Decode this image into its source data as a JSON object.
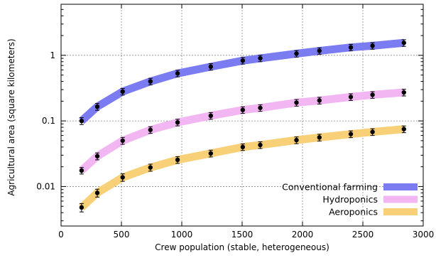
{
  "chart_data": {
    "type": "line",
    "title": "",
    "xlabel": "Crew population (stable, heterogeneous)",
    "ylabel": "Agricultural area (square kilometers)",
    "xlim": [
      0,
      3000
    ],
    "ylim": [
      0.0025,
      6
    ],
    "yscale": "log",
    "xticks": [
      0,
      500,
      1000,
      1500,
      2000,
      2500,
      3000
    ],
    "xtick_labels": [
      "0",
      "500",
      "1000",
      "1500",
      "2000",
      "2500",
      "3000"
    ],
    "yticks": [
      0.01,
      0.1,
      1
    ],
    "ytick_labels": [
      "0.01",
      "0.1",
      "1"
    ],
    "grid": true,
    "legend_position": "bottom-right",
    "x": [
      170,
      300,
      510,
      740,
      965,
      1240,
      1505,
      1650,
      1950,
      2140,
      2400,
      2580,
      2840
    ],
    "series": [
      {
        "name": "Conventional farming",
        "color": "#7b7bf2",
        "values": [
          0.1,
          0.165,
          0.28,
          0.4,
          0.53,
          0.67,
          0.83,
          0.9,
          1.06,
          1.17,
          1.32,
          1.4,
          1.55
        ],
        "error": [
          0.012,
          0.02,
          0.032,
          0.045,
          0.06,
          0.075,
          0.095,
          0.1,
          0.12,
          0.13,
          0.15,
          0.16,
          0.18
        ]
      },
      {
        "name": "Hydroponics",
        "color": "#f2b6f2",
        "values": [
          0.0175,
          0.029,
          0.05,
          0.073,
          0.095,
          0.12,
          0.147,
          0.158,
          0.19,
          0.205,
          0.232,
          0.25,
          0.272
        ],
        "error": [
          0.002,
          0.0035,
          0.006,
          0.0085,
          0.011,
          0.014,
          0.017,
          0.018,
          0.022,
          0.024,
          0.027,
          0.029,
          0.032
        ]
      },
      {
        "name": "Aeroponics",
        "color": "#f8d078",
        "values": [
          0.0048,
          0.008,
          0.0138,
          0.0195,
          0.0255,
          0.032,
          0.04,
          0.043,
          0.051,
          0.056,
          0.063,
          0.068,
          0.075
        ],
        "error": [
          0.0007,
          0.0011,
          0.0018,
          0.0024,
          0.003,
          0.0038,
          0.0046,
          0.005,
          0.006,
          0.0066,
          0.0074,
          0.008,
          0.0088
        ]
      }
    ]
  }
}
